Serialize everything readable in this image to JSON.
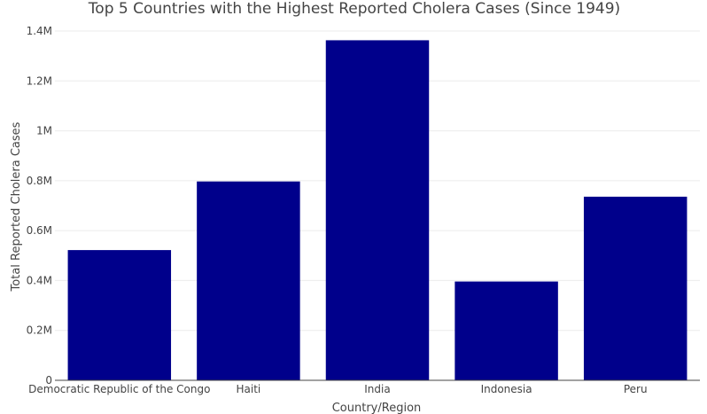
{
  "chart_data": {
    "type": "bar",
    "title": "Top 5 Countries with the Highest Reported Cholera Cases (Since 1949)",
    "xlabel": "Country/Region",
    "ylabel": "Total Reported Cholera Cases",
    "categories": [
      "Democratic Republic of the Congo",
      "Haiti",
      "India",
      "Indonesia",
      "Peru"
    ],
    "values": [
      522000,
      797000,
      1363000,
      396000,
      736000
    ],
    "ylim": [
      0,
      1400000
    ],
    "yticks": [
      0,
      200000,
      400000,
      600000,
      800000,
      1000000,
      1200000,
      1400000
    ],
    "ytick_labels": [
      "0",
      "0.2M",
      "0.4M",
      "0.6M",
      "0.8M",
      "1M",
      "1.2M",
      "1.4M"
    ],
    "bar_color": "#00008b",
    "grid": true,
    "legend": "none"
  }
}
